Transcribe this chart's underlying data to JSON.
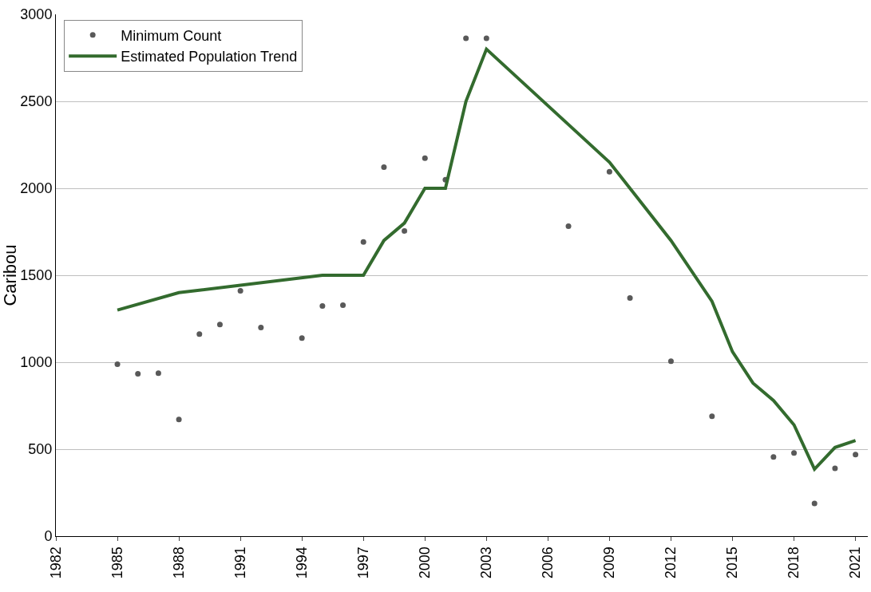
{
  "chart_data": {
    "type": "scatter",
    "ylabel": "Caribou",
    "xlim": [
      1982,
      2021.6
    ],
    "xticks": [
      1982,
      1985,
      1988,
      1991,
      1994,
      1997,
      2000,
      2003,
      2006,
      2009,
      2012,
      2015,
      2018,
      2021
    ],
    "ylim": [
      0,
      3000
    ],
    "yticks": [
      0,
      500,
      1000,
      1500,
      2000,
      2500,
      3000
    ],
    "grid": "y",
    "legend": "top left",
    "series": [
      {
        "name": "Minimum Count",
        "marker": "circle",
        "color": "#595959",
        "x": [
          1985,
          1986,
          1987,
          1988,
          1989,
          1990,
          1991,
          1992,
          1994,
          1995,
          1996,
          1997,
          1998,
          1999,
          2000,
          2001,
          2002,
          2003,
          2007,
          2009,
          2010,
          2012,
          2014,
          2017,
          2018,
          2019,
          2020,
          2021
        ],
        "values": [
          988,
          933,
          937,
          671,
          1162,
          1217,
          1410,
          1199,
          1139,
          1323,
          1328,
          1691,
          2122,
          1755,
          2173,
          2049,
          2862,
          2862,
          1782,
          2095,
          1369,
          1006,
          689,
          455,
          478,
          188,
          390,
          469
        ]
      },
      {
        "name": "Estimated Population Trend",
        "type": "line",
        "marker": "none",
        "line_style": "solid",
        "color": "#336b2e",
        "x": [
          1985,
          1988,
          1995,
          1997,
          1998,
          1999,
          2000,
          2001,
          2002,
          2003,
          2009,
          2012,
          2014,
          2015,
          2016,
          2017,
          2018,
          2019,
          2020,
          2021
        ],
        "values": [
          1300,
          1400,
          1500,
          1500,
          1700,
          1800,
          2000,
          2000,
          2500,
          2800,
          2150,
          1700,
          1350,
          1060,
          880,
          780,
          640,
          385,
          510,
          550
        ]
      }
    ]
  }
}
